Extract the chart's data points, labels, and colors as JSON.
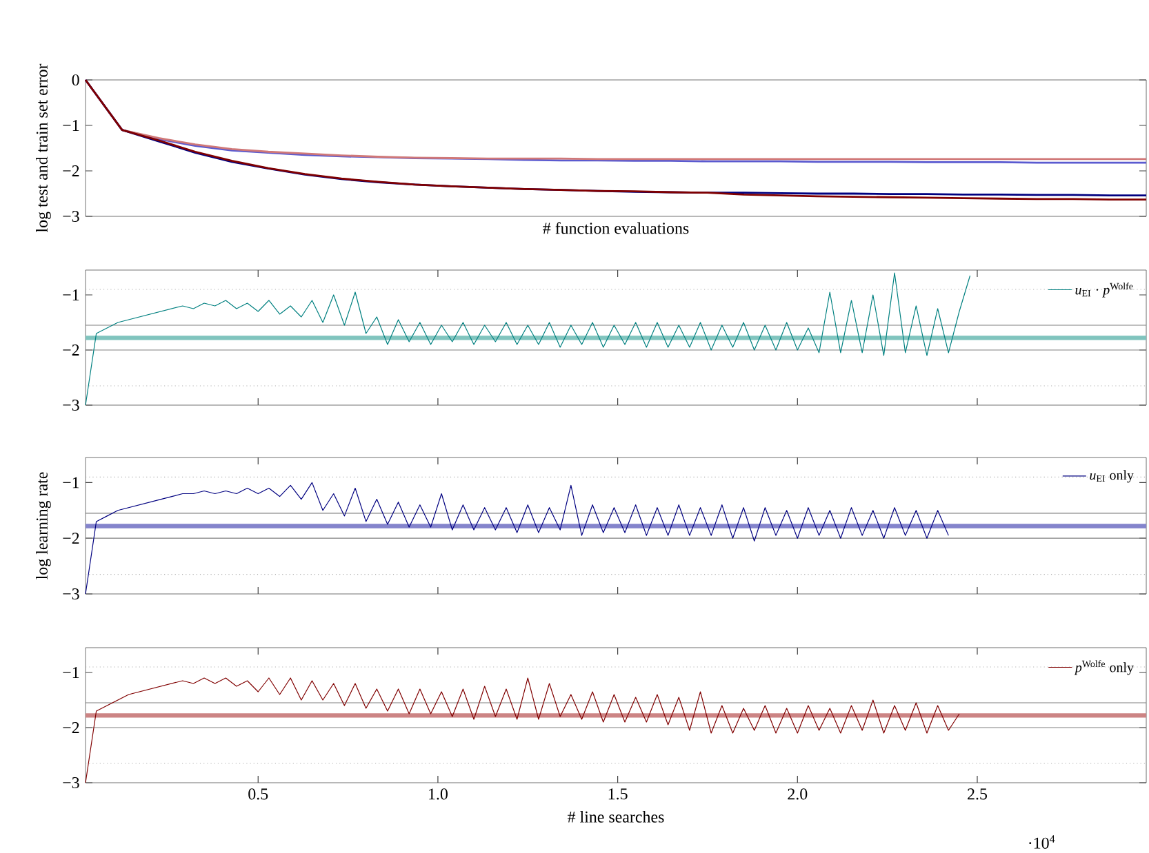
{
  "chart_data": [
    {
      "type": "line",
      "ylabel": "log test and train set error",
      "xlabel": "# function evaluations",
      "tick_labels": "y",
      "categories": [
        null,
        null,
        null,
        null,
        null,
        null,
        null,
        null,
        null,
        null,
        null,
        null,
        null,
        null,
        null,
        null,
        null,
        null,
        null,
        null,
        null,
        null,
        null,
        null,
        null,
        null,
        null,
        null,
        null,
        null
      ],
      "ylim": [
        -3,
        0
      ],
      "yticks": [
        {
          "value": -3,
          "label": "−3"
        },
        {
          "value": -2,
          "label": "−2"
        },
        {
          "value": -1,
          "label": "−1"
        },
        0
      ],
      "series": [
        {
          "color": "#5a5ad0",
          "values": [
            0,
            -1.1,
            -1.3,
            -1.45,
            -1.55,
            -1.6,
            -1.65,
            -1.68,
            -1.7,
            -1.72,
            -1.73,
            -1.74,
            -1.76,
            -1.77,
            -1.77,
            -1.78,
            -1.78,
            -1.79,
            -1.79,
            -1.79,
            -1.8,
            -1.8,
            -1.8,
            -1.81,
            -1.81,
            -1.81,
            -1.82,
            -1.82,
            -1.82,
            -1.82
          ]
        },
        {
          "color": "#d07878",
          "values": [
            0,
            -1.1,
            -1.28,
            -1.42,
            -1.52,
            -1.58,
            -1.62,
            -1.66,
            -1.69,
            -1.71,
            -1.72,
            -1.73,
            -1.73,
            -1.73,
            -1.74,
            -1.74,
            -1.74,
            -1.74,
            -1.74,
            -1.74,
            -1.74,
            -1.74,
            -1.74,
            -1.74,
            -1.74,
            -1.74,
            -1.74,
            -1.74,
            -1.74,
            -1.74
          ]
        },
        {
          "color": "#000080",
          "values": [
            0,
            -1.1,
            -1.35,
            -1.6,
            -1.8,
            -1.95,
            -2.08,
            -2.18,
            -2.25,
            -2.3,
            -2.34,
            -2.37,
            -2.4,
            -2.42,
            -2.44,
            -2.46,
            -2.47,
            -2.48,
            -2.48,
            -2.49,
            -2.5,
            -2.5,
            -2.51,
            -2.51,
            -2.52,
            -2.52,
            -2.53,
            -2.53,
            -2.54,
            -2.54
          ]
        },
        {
          "color": "#800000",
          "values": [
            0,
            -1.1,
            -1.33,
            -1.58,
            -1.78,
            -1.94,
            -2.07,
            -2.17,
            -2.24,
            -2.3,
            -2.34,
            -2.37,
            -2.4,
            -2.42,
            -2.44,
            -2.45,
            -2.47,
            -2.48,
            -2.52,
            -2.54,
            -2.56,
            -2.57,
            -2.58,
            -2.59,
            -2.6,
            -2.61,
            -2.62,
            -2.62,
            -2.63,
            -2.63
          ]
        }
      ]
    },
    {
      "type": "line",
      "tick_labels": "y",
      "legend": "top right",
      "xlim": [
        0.02,
        2.97
      ],
      "xticks": [
        {
          "value": 0.5,
          "label": null
        },
        {
          "value": 1,
          "label": null
        },
        {
          "value": 1.5,
          "label": null
        },
        {
          "value": 2,
          "label": null
        },
        {
          "value": 2.5,
          "label": null
        }
      ],
      "ylim": [
        -3,
        -0.55
      ],
      "yticks": [
        {
          "value": -3,
          "label": "−3"
        },
        {
          "value": -2,
          "label": "−2"
        },
        {
          "value": -1,
          "label": "−1"
        }
      ],
      "ref_lines": [
        {
          "axis": "y",
          "value": -0.9,
          "color": "#b0b0b0",
          "line_style": "dotted"
        },
        {
          "axis": "y",
          "value": -1.55,
          "color": "#808080"
        },
        {
          "axis": "y",
          "value": -2.0,
          "color": "#808080"
        },
        {
          "axis": "y",
          "value": -2.65,
          "color": "#b0b0b0",
          "line_style": "dotted"
        }
      ],
      "bands": [
        {
          "axis": "y",
          "from": -1.82,
          "to": -1.74,
          "color": "#80c4be"
        }
      ],
      "series": [
        {
          "name": "*u*$_{EI}$ · *p*$^{Wolfe}$",
          "color": "#008080",
          "x": [
            0.02,
            0.05,
            0.08,
            0.11,
            0.14,
            0.17,
            0.2,
            0.23,
            0.26,
            0.29,
            0.32,
            0.35,
            0.38,
            0.41,
            0.44,
            0.47,
            0.5,
            0.53,
            0.56,
            0.59,
            0.62,
            0.65,
            0.68,
            0.71,
            0.74,
            0.77,
            0.8,
            0.83,
            0.86,
            0.89,
            0.92,
            0.95,
            0.98,
            1.01,
            1.04,
            1.07,
            1.1,
            1.13,
            1.16,
            1.19,
            1.22,
            1.25,
            1.28,
            1.31,
            1.34,
            1.37,
            1.4,
            1.43,
            1.46,
            1.49,
            1.52,
            1.55,
            1.58,
            1.61,
            1.64,
            1.67,
            1.7,
            1.73,
            1.76,
            1.79,
            1.82,
            1.85,
            1.88,
            1.91,
            1.94,
            1.97,
            2.0,
            2.03,
            2.06,
            2.09,
            2.12,
            2.15,
            2.18,
            2.21,
            2.24,
            2.27,
            2.3,
            2.33,
            2.36,
            2.39,
            2.42,
            2.45,
            2.48
          ],
          "values": [
            -3,
            -1.7,
            -1.6,
            -1.5,
            -1.45,
            -1.4,
            -1.35,
            -1.3,
            -1.25,
            -1.2,
            -1.25,
            -1.15,
            -1.2,
            -1.1,
            -1.25,
            -1.15,
            -1.3,
            -1.1,
            -1.35,
            -1.2,
            -1.4,
            -1.1,
            -1.5,
            -1.0,
            -1.55,
            -0.95,
            -1.7,
            -1.4,
            -1.9,
            -1.45,
            -1.85,
            -1.5,
            -1.9,
            -1.55,
            -1.85,
            -1.5,
            -1.9,
            -1.55,
            -1.85,
            -1.5,
            -1.9,
            -1.55,
            -1.9,
            -1.5,
            -1.95,
            -1.55,
            -1.9,
            -1.5,
            -1.95,
            -1.55,
            -1.9,
            -1.5,
            -1.95,
            -1.5,
            -1.95,
            -1.55,
            -1.95,
            -1.5,
            -2.0,
            -1.55,
            -1.95,
            -1.5,
            -2.0,
            -1.55,
            -2.0,
            -1.5,
            -2.0,
            -1.6,
            -2.05,
            -0.95,
            -2.05,
            -1.1,
            -2.05,
            -1.0,
            -2.1,
            -0.6,
            -2.05,
            -1.2,
            -2.1,
            -1.25,
            -2.05,
            -1.3,
            -0.65
          ]
        }
      ]
    },
    {
      "type": "line",
      "ylabel": "log learning rate",
      "tick_labels": "y",
      "legend": "top right",
      "xlim": [
        0.02,
        2.97
      ],
      "xticks": [
        {
          "value": 0.5,
          "label": null
        },
        {
          "value": 1,
          "label": null
        },
        {
          "value": 1.5,
          "label": null
        },
        {
          "value": 2,
          "label": null
        },
        {
          "value": 2.5,
          "label": null
        }
      ],
      "ylim": [
        -3,
        -0.55
      ],
      "yticks": [
        {
          "value": -3,
          "label": "−3"
        },
        {
          "value": -2,
          "label": "−2"
        },
        {
          "value": -1,
          "label": "−1"
        }
      ],
      "ref_lines": [
        {
          "axis": "y",
          "value": -0.9,
          "color": "#b0b0b0",
          "line_style": "dotted"
        },
        {
          "axis": "y",
          "value": -1.55,
          "color": "#808080"
        },
        {
          "axis": "y",
          "value": -2.0,
          "color": "#808080"
        },
        {
          "axis": "y",
          "value": -2.65,
          "color": "#b0b0b0",
          "line_style": "dotted"
        }
      ],
      "bands": [
        {
          "axis": "y",
          "from": -1.82,
          "to": -1.74,
          "color": "#8484cc"
        }
      ],
      "series": [
        {
          "name": "*u*$_{EI}$ only",
          "color": "#000080",
          "x": [
            0.02,
            0.05,
            0.08,
            0.11,
            0.14,
            0.17,
            0.2,
            0.23,
            0.26,
            0.29,
            0.32,
            0.35,
            0.38,
            0.41,
            0.44,
            0.47,
            0.5,
            0.53,
            0.56,
            0.59,
            0.62,
            0.65,
            0.68,
            0.71,
            0.74,
            0.77,
            0.8,
            0.83,
            0.86,
            0.89,
            0.92,
            0.95,
            0.98,
            1.01,
            1.04,
            1.07,
            1.1,
            1.13,
            1.16,
            1.19,
            1.22,
            1.25,
            1.28,
            1.31,
            1.34,
            1.37,
            1.4,
            1.43,
            1.46,
            1.49,
            1.52,
            1.55,
            1.58,
            1.61,
            1.64,
            1.67,
            1.7,
            1.73,
            1.76,
            1.79,
            1.82,
            1.85,
            1.88,
            1.91,
            1.94,
            1.97,
            2.0,
            2.03,
            2.06,
            2.09,
            2.12,
            2.15,
            2.18,
            2.21,
            2.24,
            2.27,
            2.3,
            2.33,
            2.36,
            2.39,
            2.42
          ],
          "values": [
            -3,
            -1.7,
            -1.6,
            -1.5,
            -1.45,
            -1.4,
            -1.35,
            -1.3,
            -1.25,
            -1.2,
            -1.2,
            -1.15,
            -1.2,
            -1.15,
            -1.2,
            -1.1,
            -1.2,
            -1.1,
            -1.25,
            -1.05,
            -1.3,
            -1.0,
            -1.5,
            -1.2,
            -1.6,
            -1.1,
            -1.7,
            -1.3,
            -1.75,
            -1.35,
            -1.8,
            -1.4,
            -1.8,
            -1.2,
            -1.85,
            -1.4,
            -1.85,
            -1.45,
            -1.85,
            -1.45,
            -1.9,
            -1.4,
            -1.9,
            -1.45,
            -1.85,
            -1.05,
            -1.95,
            -1.4,
            -1.9,
            -1.45,
            -1.9,
            -1.4,
            -1.95,
            -1.45,
            -1.95,
            -1.4,
            -1.95,
            -1.45,
            -1.95,
            -1.4,
            -2.0,
            -1.45,
            -2.05,
            -1.45,
            -1.95,
            -1.5,
            -2.0,
            -1.45,
            -1.95,
            -1.5,
            -2.0,
            -1.45,
            -1.95,
            -1.5,
            -2.0,
            -1.45,
            -1.95,
            -1.5,
            -2.0,
            -1.5,
            -1.95
          ]
        }
      ]
    },
    {
      "type": "line",
      "xlabel": "# line searches",
      "legend": "top right",
      "annotations": [
        "·10$^{4}$"
      ],
      "xlim": [
        0.02,
        2.97
      ],
      "xticks": [
        0.5,
        {
          "value": 1,
          "label": "1.0"
        },
        1.5,
        {
          "value": 2,
          "label": "2.0"
        },
        2.5
      ],
      "ylim": [
        -3,
        -0.55
      ],
      "yticks": [
        {
          "value": -3,
          "label": "−3"
        },
        {
          "value": -2,
          "label": "−2"
        },
        {
          "value": -1,
          "label": "−1"
        }
      ],
      "ref_lines": [
        {
          "axis": "y",
          "value": -0.9,
          "color": "#b0b0b0",
          "line_style": "dotted"
        },
        {
          "axis": "y",
          "value": -1.55,
          "color": "#808080"
        },
        {
          "axis": "y",
          "value": -2.0,
          "color": "#808080"
        },
        {
          "axis": "y",
          "value": -2.65,
          "color": "#b0b0b0",
          "line_style": "dotted"
        }
      ],
      "bands": [
        {
          "axis": "y",
          "from": -1.82,
          "to": -1.74,
          "color": "#cc8484"
        }
      ],
      "series": [
        {
          "name": "*p*$^{Wolfe}$ only",
          "color": "#800000",
          "x": [
            0.02,
            0.05,
            0.08,
            0.11,
            0.14,
            0.17,
            0.2,
            0.23,
            0.26,
            0.29,
            0.32,
            0.35,
            0.38,
            0.41,
            0.44,
            0.47,
            0.5,
            0.53,
            0.56,
            0.59,
            0.62,
            0.65,
            0.68,
            0.71,
            0.74,
            0.77,
            0.8,
            0.83,
            0.86,
            0.89,
            0.92,
            0.95,
            0.98,
            1.01,
            1.04,
            1.07,
            1.1,
            1.13,
            1.16,
            1.19,
            1.22,
            1.25,
            1.28,
            1.31,
            1.34,
            1.37,
            1.4,
            1.43,
            1.46,
            1.49,
            1.52,
            1.55,
            1.58,
            1.61,
            1.64,
            1.67,
            1.7,
            1.73,
            1.76,
            1.79,
            1.82,
            1.85,
            1.88,
            1.91,
            1.94,
            1.97,
            2.0,
            2.03,
            2.06,
            2.09,
            2.12,
            2.15,
            2.18,
            2.21,
            2.24,
            2.27,
            2.3,
            2.33,
            2.36,
            2.39,
            2.42,
            2.45
          ],
          "values": [
            -3,
            -1.7,
            -1.6,
            -1.5,
            -1.4,
            -1.35,
            -1.3,
            -1.25,
            -1.2,
            -1.15,
            -1.2,
            -1.1,
            -1.2,
            -1.1,
            -1.25,
            -1.15,
            -1.35,
            -1.1,
            -1.4,
            -1.1,
            -1.5,
            -1.15,
            -1.5,
            -1.2,
            -1.6,
            -1.2,
            -1.65,
            -1.3,
            -1.7,
            -1.3,
            -1.75,
            -1.3,
            -1.75,
            -1.35,
            -1.8,
            -1.3,
            -1.85,
            -1.25,
            -1.8,
            -1.3,
            -1.85,
            -1.1,
            -1.85,
            -1.2,
            -1.8,
            -1.4,
            -1.85,
            -1.35,
            -1.9,
            -1.4,
            -1.9,
            -1.45,
            -1.9,
            -1.4,
            -1.95,
            -1.45,
            -2.05,
            -1.35,
            -2.1,
            -1.6,
            -2.1,
            -1.65,
            -2.05,
            -1.6,
            -2.1,
            -1.65,
            -2.1,
            -1.6,
            -2.05,
            -1.65,
            -2.1,
            -1.6,
            -2.05,
            -1.5,
            -2.1,
            -1.6,
            -2.05,
            -1.55,
            -2.1,
            -1.6,
            -2.05,
            -1.75
          ]
        }
      ]
    }
  ]
}
